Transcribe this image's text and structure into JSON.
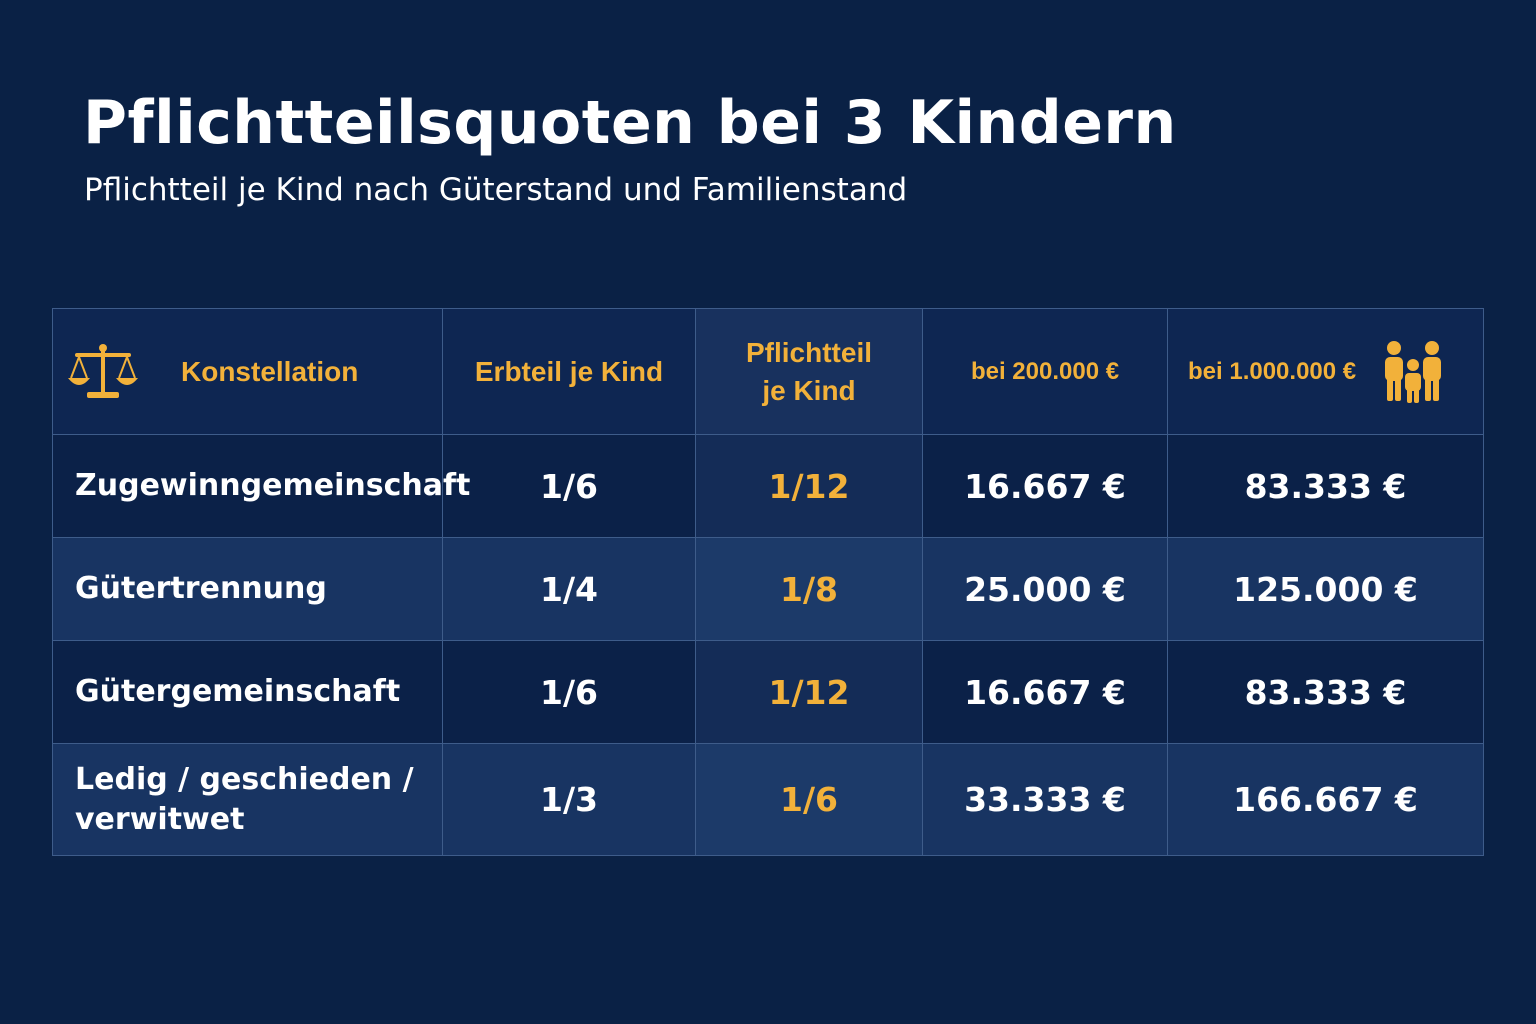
{
  "title": "Pflichtteilsquoten bei 3 Kindern",
  "subtitle": "Pflichtteil je Kind nach Güterstand und Familienstand",
  "colors": {
    "background": "#0a2145",
    "accent": "#f2b13a",
    "text": "#ffffff",
    "border": "#3e5c8a"
  },
  "icons": {
    "header_left": "scales-icon",
    "header_right": "family-icon"
  },
  "table": {
    "headers": {
      "konstellation": "Konstellation",
      "erbteil": "Erbteil je Kind",
      "pflichtteil_line1": "Pflichtteil",
      "pflichtteil_line2": "je Kind",
      "bei200": "bei 200.000 €",
      "bei1mio": "bei 1.000.000 €"
    },
    "rows": [
      {
        "konstellation": "Zugewinngemeinschaft",
        "erbteil": "1/6",
        "pflichtteil": "1/12",
        "bei200": "16.667 €",
        "bei1mio": "83.333 €"
      },
      {
        "konstellation": "Gütertrennung",
        "erbteil": "1/4",
        "pflichtteil": "1/8",
        "bei200": "25.000 €",
        "bei1mio": "125.000 €"
      },
      {
        "konstellation": "Gütergemeinschaft",
        "erbteil": "1/6",
        "pflichtteil": "1/12",
        "bei200": "16.667 €",
        "bei1mio": "83.333 €"
      },
      {
        "konstellation_line1": "Ledig / geschieden /",
        "konstellation_line2": "verwitwet",
        "erbteil": "1/3",
        "pflichtteil": "1/6",
        "bei200": "33.333 €",
        "bei1mio": "166.667 €"
      }
    ]
  }
}
